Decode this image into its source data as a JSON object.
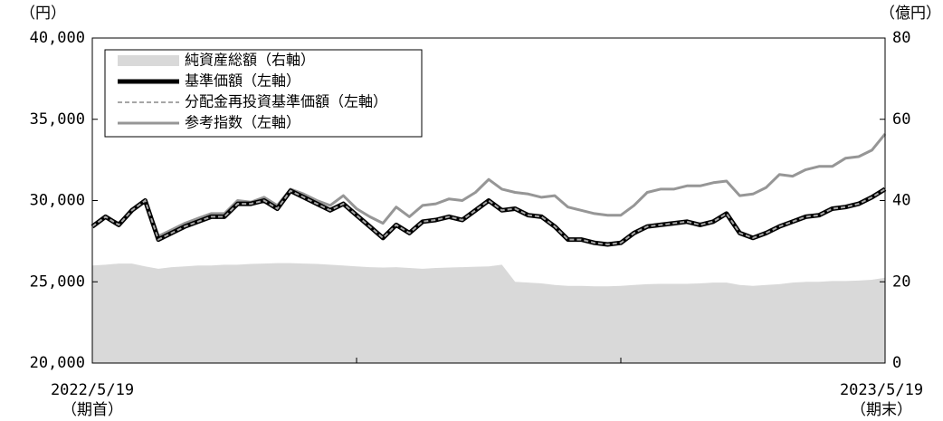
{
  "chart_data": {
    "type": "line",
    "y_label": "（円）",
    "y2_label": "（億円）",
    "categories": [
      "2022/5/19",
      null,
      null,
      null,
      null,
      null,
      null,
      null,
      null,
      null,
      null,
      null,
      null,
      null,
      null,
      null,
      null,
      null,
      null,
      null,
      null,
      null,
      null,
      null,
      null,
      null,
      null,
      null,
      null,
      null,
      null,
      null,
      null,
      null,
      null,
      null,
      null,
      null,
      null,
      null,
      null,
      null,
      null,
      null,
      null,
      null,
      null,
      null,
      null,
      null,
      null,
      null,
      null,
      null,
      null,
      null,
      null,
      null,
      null,
      null,
      "2023/5/19"
    ],
    "start_note": "（期首）",
    "end_note": "（期末）",
    "ylim": [
      20000,
      40000
    ],
    "yticks": [
      {
        "value": 20000,
        "label": "20,000"
      },
      {
        "value": 25000,
        "label": "25,000"
      },
      {
        "value": 30000,
        "label": "30,000"
      },
      {
        "value": 35000,
        "label": "35,000"
      },
      {
        "value": 40000,
        "label": "40,000"
      }
    ],
    "y2lim": [
      0,
      80
    ],
    "y2ticks": [
      0,
      20,
      40,
      60,
      80
    ],
    "series": [
      {
        "name": "純資産総額（右軸）",
        "color": "#d9d9d9",
        "style": "area",
        "axis": "y2",
        "values": [
          24.0,
          24.2,
          24.5,
          24.5,
          23.8,
          23.2,
          23.6,
          23.8,
          24.0,
          24.0,
          24.2,
          24.2,
          24.4,
          24.5,
          24.6,
          24.6,
          24.5,
          24.4,
          24.2,
          24.0,
          23.8,
          23.6,
          23.5,
          23.6,
          23.4,
          23.2,
          23.4,
          23.5,
          23.6,
          23.7,
          23.8,
          24.2,
          20.0,
          19.8,
          19.6,
          19.2,
          19.0,
          19.0,
          18.9,
          18.9,
          19.0,
          19.2,
          19.4,
          19.5,
          19.5,
          19.5,
          19.6,
          19.8,
          19.8,
          19.2,
          19.0,
          19.2,
          19.4,
          19.8,
          20.0,
          20.0,
          20.2,
          20.2,
          20.3,
          20.5,
          21.0
        ]
      },
      {
        "name": "基準価額（左軸）",
        "color": "#000000",
        "style": "thick",
        "values": [
          28400,
          29000,
          28500,
          29400,
          30000,
          27600,
          28000,
          28400,
          28700,
          29000,
          29000,
          29800,
          29800,
          30000,
          29500,
          30600,
          30200,
          29800,
          29400,
          29800,
          29100,
          28400,
          27700,
          28500,
          28000,
          28700,
          28800,
          29000,
          28800,
          29400,
          30000,
          29400,
          29500,
          29100,
          29000,
          28400,
          27600,
          27600,
          27400,
          27300,
          27400,
          28000,
          28400,
          28500,
          28600,
          28700,
          28500,
          28700,
          29200,
          28000,
          27700,
          28000,
          28400,
          28700,
          29000,
          29100,
          29500,
          29600,
          29800,
          30200,
          30700
        ]
      },
      {
        "name": "分配金再投資基準価額（左軸）",
        "color": "#a6a6a6",
        "style": "dashed",
        "values": [
          28400,
          29000,
          28500,
          29400,
          30000,
          27600,
          28000,
          28400,
          28700,
          29000,
          29000,
          29800,
          29800,
          30000,
          29500,
          30600,
          30200,
          29800,
          29400,
          29800,
          29100,
          28400,
          27700,
          28500,
          28000,
          28700,
          28800,
          29000,
          28800,
          29400,
          30000,
          29400,
          29500,
          29100,
          29000,
          28400,
          27600,
          27600,
          27400,
          27300,
          27400,
          28000,
          28400,
          28500,
          28600,
          28700,
          28500,
          28700,
          29200,
          28000,
          27700,
          28000,
          28400,
          28700,
          29000,
          29100,
          29500,
          29600,
          29800,
          30200,
          30700
        ]
      },
      {
        "name": "参考指数（左軸）",
        "color": "#969696",
        "style": "solid",
        "values": [
          28400,
          29000,
          28600,
          29400,
          30000,
          27800,
          28200,
          28600,
          28900,
          29200,
          29200,
          30000,
          29900,
          30200,
          29700,
          30700,
          30400,
          30000,
          29700,
          30300,
          29500,
          29000,
          28600,
          29600,
          29000,
          29700,
          29800,
          30100,
          30000,
          30500,
          31300,
          30700,
          30500,
          30400,
          30200,
          30300,
          29600,
          29400,
          29200,
          29100,
          29100,
          29700,
          30500,
          30700,
          30700,
          30900,
          30900,
          31100,
          31200,
          30300,
          30400,
          30800,
          31600,
          31500,
          31900,
          32100,
          32100,
          32600,
          32700,
          33100,
          34100
        ]
      }
    ]
  }
}
